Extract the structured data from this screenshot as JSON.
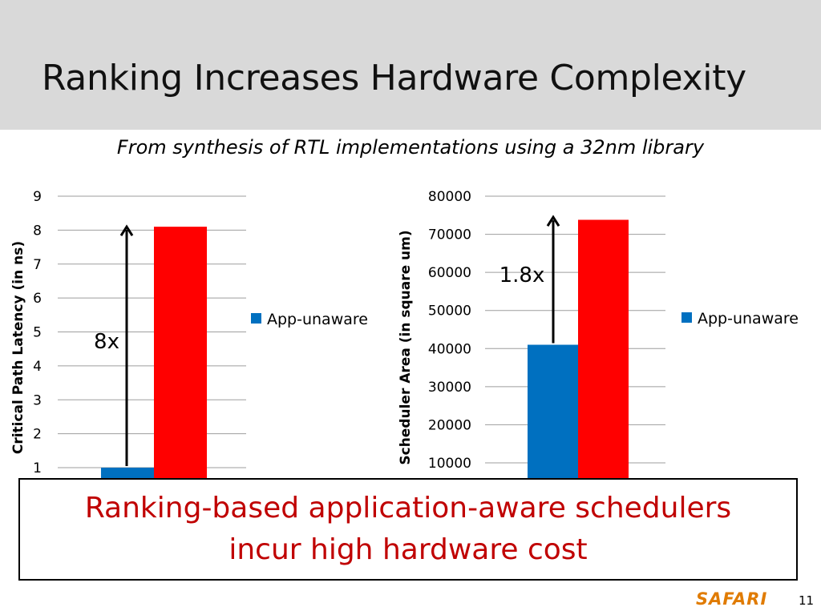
{
  "slide": {
    "title": "Ranking Increases Hardware Complexity",
    "subtitle": "From synthesis of RTL implementations using a 32nm library",
    "callout_line1": "Ranking-based application-aware schedulers",
    "callout_line2": "incur high hardware cost",
    "footer_brand": "SAFARI",
    "page_number": "11"
  },
  "colors": {
    "app_unaware": "#0070c0",
    "second_series": "#ff0000",
    "callout_text": "#c00000"
  },
  "chart_data": [
    {
      "type": "bar",
      "categories": [
        ""
      ],
      "series": [
        {
          "name": "App-unaware",
          "values": [
            1.0
          ],
          "color": "#0070c0"
        },
        {
          "name": "",
          "values": [
            8.1
          ],
          "color": "#ff0000"
        }
      ],
      "ylabel": "Critical Path Latency (in ns)",
      "yticks": [
        "1",
        "2",
        "3",
        "4",
        "5",
        "6",
        "7",
        "8",
        "9"
      ],
      "ylim": [
        1,
        9
      ],
      "annotation": "8x",
      "legend": "right"
    },
    {
      "type": "bar",
      "categories": [
        ""
      ],
      "series": [
        {
          "name": "App-unaware",
          "values": [
            41000
          ],
          "color": "#0070c0"
        },
        {
          "name": "",
          "values": [
            73800
          ],
          "color": "#ff0000"
        }
      ],
      "ylabel": "Scheduler Area (in square um)",
      "yticks": [
        "10000",
        "20000",
        "30000",
        "40000",
        "50000",
        "60000",
        "70000",
        "80000"
      ],
      "ylim": [
        10000,
        80000
      ],
      "annotation": "1.8x",
      "legend": "right"
    }
  ]
}
